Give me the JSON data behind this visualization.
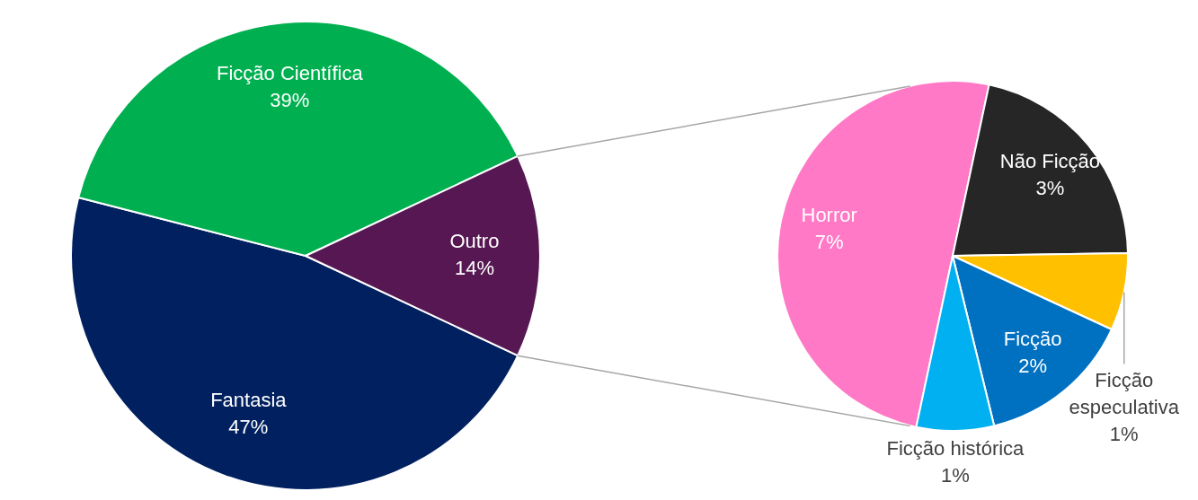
{
  "chart_data": [
    {
      "type": "pie",
      "categories": [
        "Fantasia",
        "Ficção Científica",
        "Outro"
      ],
      "values": [
        47,
        39,
        14
      ],
      "colors": [
        "#002060",
        "#00b050",
        "#561752"
      ],
      "value_labels": [
        "47%",
        "39%",
        "14%"
      ]
    },
    {
      "type": "pie",
      "categories": [
        "Horror",
        "Não Ficção",
        "Ficção especulativa",
        "Ficção",
        "Ficção histórica"
      ],
      "values": [
        7,
        3,
        1,
        2,
        1
      ],
      "colors": [
        "#ff79c6",
        "#262626",
        "#ffc000",
        "#0070c0",
        "#00b0f0"
      ],
      "value_labels": [
        "7%",
        "3%",
        "1%",
        "2%",
        "1%"
      ]
    }
  ]
}
